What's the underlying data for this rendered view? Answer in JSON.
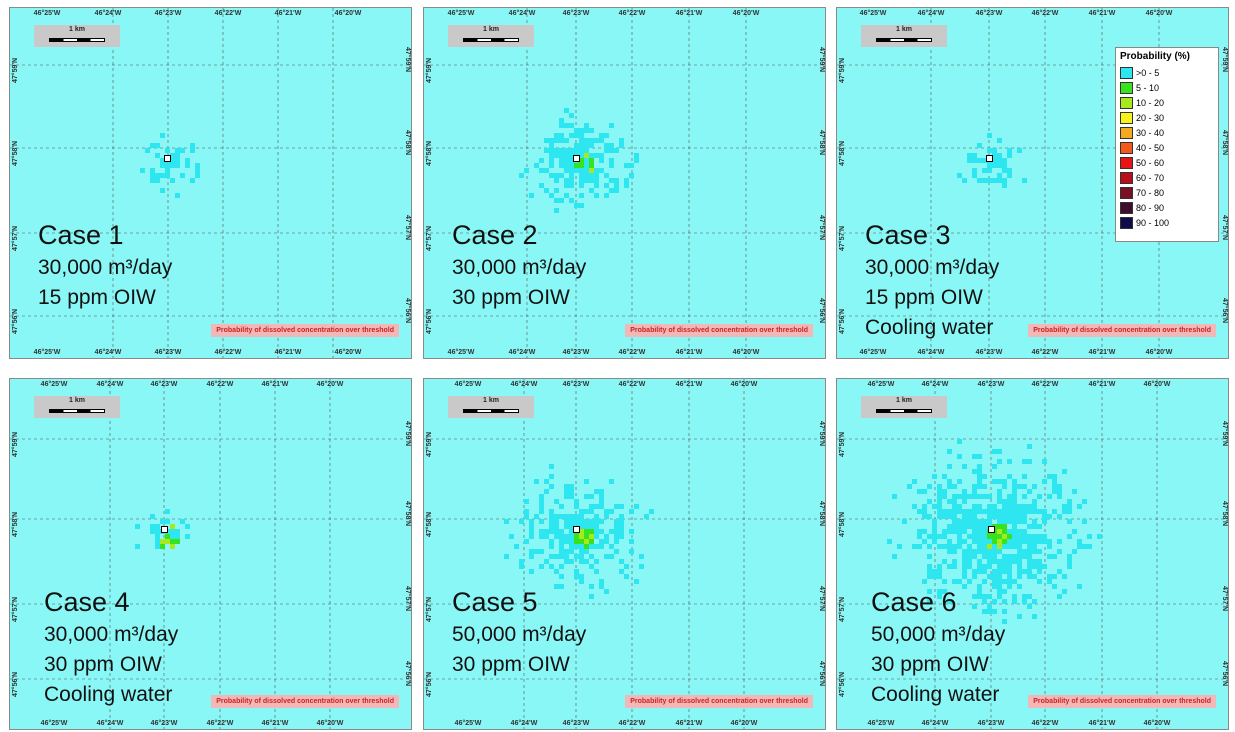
{
  "lon_labels_a": [
    "46°25'W",
    "46°24'W",
    "46°23'W",
    "46°22'W",
    "46°21'W",
    "46°20'W"
  ],
  "lon_labels_b": [
    "46°25'W",
    "46°24'W",
    "46°23'W",
    "46°22'W",
    "46°21'W",
    "46°20'W"
  ],
  "lat_labels": [
    "47°59'N",
    "47°58'N",
    "47°57'N",
    "47°56'N"
  ],
  "scale_label": "1 km",
  "caption": "Probability of dissolved concentration over threshold",
  "legend": {
    "title": "Probability (%)",
    "items": [
      {
        "label": ">0 - 5",
        "color": "#2de6f0"
      },
      {
        "label": "5 - 10",
        "color": "#39e21e"
      },
      {
        "label": "10 - 20",
        "color": "#a8e81e"
      },
      {
        "label": "20 - 30",
        "color": "#f4f41a"
      },
      {
        "label": "30 - 40",
        "color": "#f5a91f"
      },
      {
        "label": "40 - 50",
        "color": "#f5591a"
      },
      {
        "label": "50 - 60",
        "color": "#e81414"
      },
      {
        "label": "60 - 70",
        "color": "#b80d1a"
      },
      {
        "label": "70 - 80",
        "color": "#7a1026"
      },
      {
        "label": "80 - 90",
        "color": "#3f0c2a"
      },
      {
        "label": "90 - 100",
        "color": "#100c4a"
      }
    ]
  },
  "cases": [
    {
      "title": "Case 1",
      "rate": "30,000 m³/day",
      "conc": "15 ppm OIW",
      "extra": ""
    },
    {
      "title": "Case 2",
      "rate": "30,000 m³/day",
      "conc": "30 ppm OIW",
      "extra": ""
    },
    {
      "title": "Case 3",
      "rate": "30,000 m³/day",
      "conc": "15 ppm OIW",
      "extra": "Cooling water"
    },
    {
      "title": "Case 4",
      "rate": "30,000 m³/day",
      "conc": "30 ppm OIW",
      "extra": "Cooling water"
    },
    {
      "title": "Case 5",
      "rate": "50,000 m³/day",
      "conc": "30 ppm OIW",
      "extra": ""
    },
    {
      "title": "Case 6",
      "rate": "50,000 m³/day",
      "conc": "30 ppm OIW",
      "extra": "Cooling water"
    }
  ],
  "colors": {
    "sea": "#89f7f5",
    "plume_low": "#2de6f0",
    "plume_mid": "#39e21e",
    "plume_high": "#a8e81e",
    "plume_top": "#f4f41a"
  }
}
